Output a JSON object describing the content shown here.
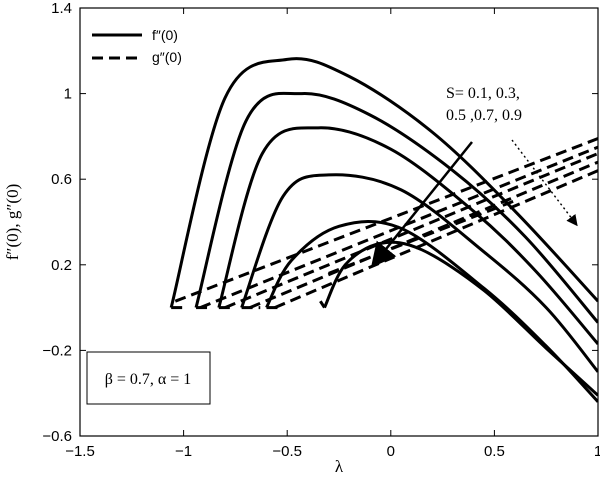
{
  "chart_data": {
    "type": "line",
    "xlabel": "λ",
    "ylabel": "f″(0),  g″(0)",
    "xlim": [
      -1.5,
      1
    ],
    "ylim": [
      -0.6,
      1.4
    ],
    "xticks": [
      -1.5,
      -1,
      -0.5,
      0,
      0.5,
      1
    ],
    "xtick_labels": [
      "−1.5",
      "−1",
      "−0.5",
      "0",
      "0.5",
      "1"
    ],
    "yticks": [
      -0.6,
      -0.2,
      0.2,
      0.6,
      1,
      1.4
    ],
    "ytick_labels": [
      "−0.6",
      "−0.2",
      "0.2",
      "0.6",
      "1",
      "1.4"
    ],
    "grid": false,
    "legend": {
      "position": "top-left",
      "entries": [
        {
          "label": "f″(0)",
          "style": "solid"
        },
        {
          "label": "g″(0)",
          "style": "dashed"
        }
      ]
    },
    "annotation_lines": [
      "S= 0.1, 0.3,",
      "0.5 ,0.7, 0.9"
    ],
    "parameter_box": "β = 0.7, α = 1",
    "series": [
      {
        "group": "f″(0)",
        "style": "solid",
        "S": 0.1,
        "x_turn": -1.06,
        "upper": [
          [
            -1.06,
            0.0
          ],
          [
            -0.8,
            0.98
          ],
          [
            -0.5,
            1.16
          ],
          [
            -0.2,
            1.08
          ],
          [
            0.2,
            0.82
          ],
          [
            0.6,
            0.45
          ],
          [
            1.0,
            0.03
          ]
        ],
        "lower": [
          [
            -1.06,
            0.0
          ],
          [
            -1.0,
            0.0
          ]
        ]
      },
      {
        "group": "f″(0)",
        "style": "solid",
        "S": 0.3,
        "x_turn": -0.94,
        "upper": [
          [
            -0.94,
            0.0
          ],
          [
            -0.7,
            0.87
          ],
          [
            -0.43,
            1.0
          ],
          [
            -0.1,
            0.9
          ],
          [
            0.3,
            0.64
          ],
          [
            0.65,
            0.33
          ],
          [
            1.0,
            -0.07
          ]
        ],
        "lower": [
          [
            -0.94,
            0.0
          ],
          [
            -0.88,
            0.0
          ]
        ]
      },
      {
        "group": "f″(0)",
        "style": "solid",
        "S": 0.5,
        "x_turn": -0.83,
        "upper": [
          [
            -0.83,
            0.0
          ],
          [
            -0.62,
            0.72
          ],
          [
            -0.35,
            0.84
          ],
          [
            0.0,
            0.74
          ],
          [
            0.4,
            0.45
          ],
          [
            0.7,
            0.17
          ],
          [
            1.0,
            -0.17
          ]
        ],
        "lower": [
          [
            -0.83,
            0.0
          ],
          [
            -0.76,
            0.0
          ]
        ]
      },
      {
        "group": "f″(0)",
        "style": "solid",
        "S": 0.7,
        "x_turn": -0.72,
        "upper": [
          [
            -0.72,
            0.0
          ],
          [
            -0.52,
            0.52
          ],
          [
            -0.3,
            0.62
          ],
          [
            0.05,
            0.55
          ],
          [
            0.45,
            0.26
          ],
          [
            0.75,
            0.0
          ],
          [
            1.0,
            -0.3
          ]
        ],
        "lower": [
          [
            -0.72,
            0.0
          ],
          [
            -0.63,
            0.0
          ]
        ]
      },
      {
        "group": "f″(0)",
        "style": "solid",
        "S": 0.9,
        "x_turn": -0.6,
        "upper": [
          [
            -0.6,
            0.0
          ],
          [
            -0.48,
            0.22
          ],
          [
            -0.25,
            0.38
          ],
          [
            0.05,
            0.37
          ],
          [
            0.45,
            0.09
          ],
          [
            0.75,
            -0.18
          ],
          [
            1.0,
            -0.44
          ]
        ],
        "lower": [
          [
            -0.6,
            0.0
          ],
          [
            -0.52,
            0.0
          ]
        ]
      },
      {
        "group": "f″(0)",
        "style": "solid",
        "S": null,
        "x_turn": -0.32,
        "upper": [
          [
            -0.32,
            0.0
          ],
          [
            -0.22,
            0.2
          ],
          [
            -0.05,
            0.3
          ],
          [
            0.15,
            0.27
          ],
          [
            0.45,
            0.08
          ],
          [
            0.75,
            -0.19
          ],
          [
            1.0,
            -0.41
          ]
        ],
        "lower": [
          [
            -0.32,
            0.0
          ],
          [
            -0.34,
            0.03
          ]
        ]
      },
      {
        "group": "g″(0)",
        "style": "dashed",
        "S": 0.1,
        "points": [
          [
            -1.04,
            0.03
          ],
          [
            1.0,
            0.79
          ]
        ]
      },
      {
        "group": "g″(0)",
        "style": "dashed",
        "S": 0.3,
        "points": [
          [
            -0.92,
            0.0
          ],
          [
            1.0,
            0.75
          ]
        ]
      },
      {
        "group": "g″(0)",
        "style": "dashed",
        "S": 0.5,
        "points": [
          [
            -0.8,
            0.0
          ],
          [
            1.0,
            0.72
          ]
        ]
      },
      {
        "group": "g″(0)",
        "style": "dashed",
        "S": 0.7,
        "points": [
          [
            -0.68,
            0.0
          ],
          [
            1.0,
            0.68
          ]
        ]
      },
      {
        "group": "g″(0)",
        "style": "dashed",
        "S": 0.9,
        "points": [
          [
            -0.56,
            0.0
          ],
          [
            1.0,
            0.64
          ]
        ]
      },
      {
        "group": "g″(0)",
        "style": "dashed",
        "S": null,
        "points": [
          [
            -0.3,
            0.16
          ],
          [
            0.6,
            0.5
          ]
        ]
      }
    ]
  }
}
